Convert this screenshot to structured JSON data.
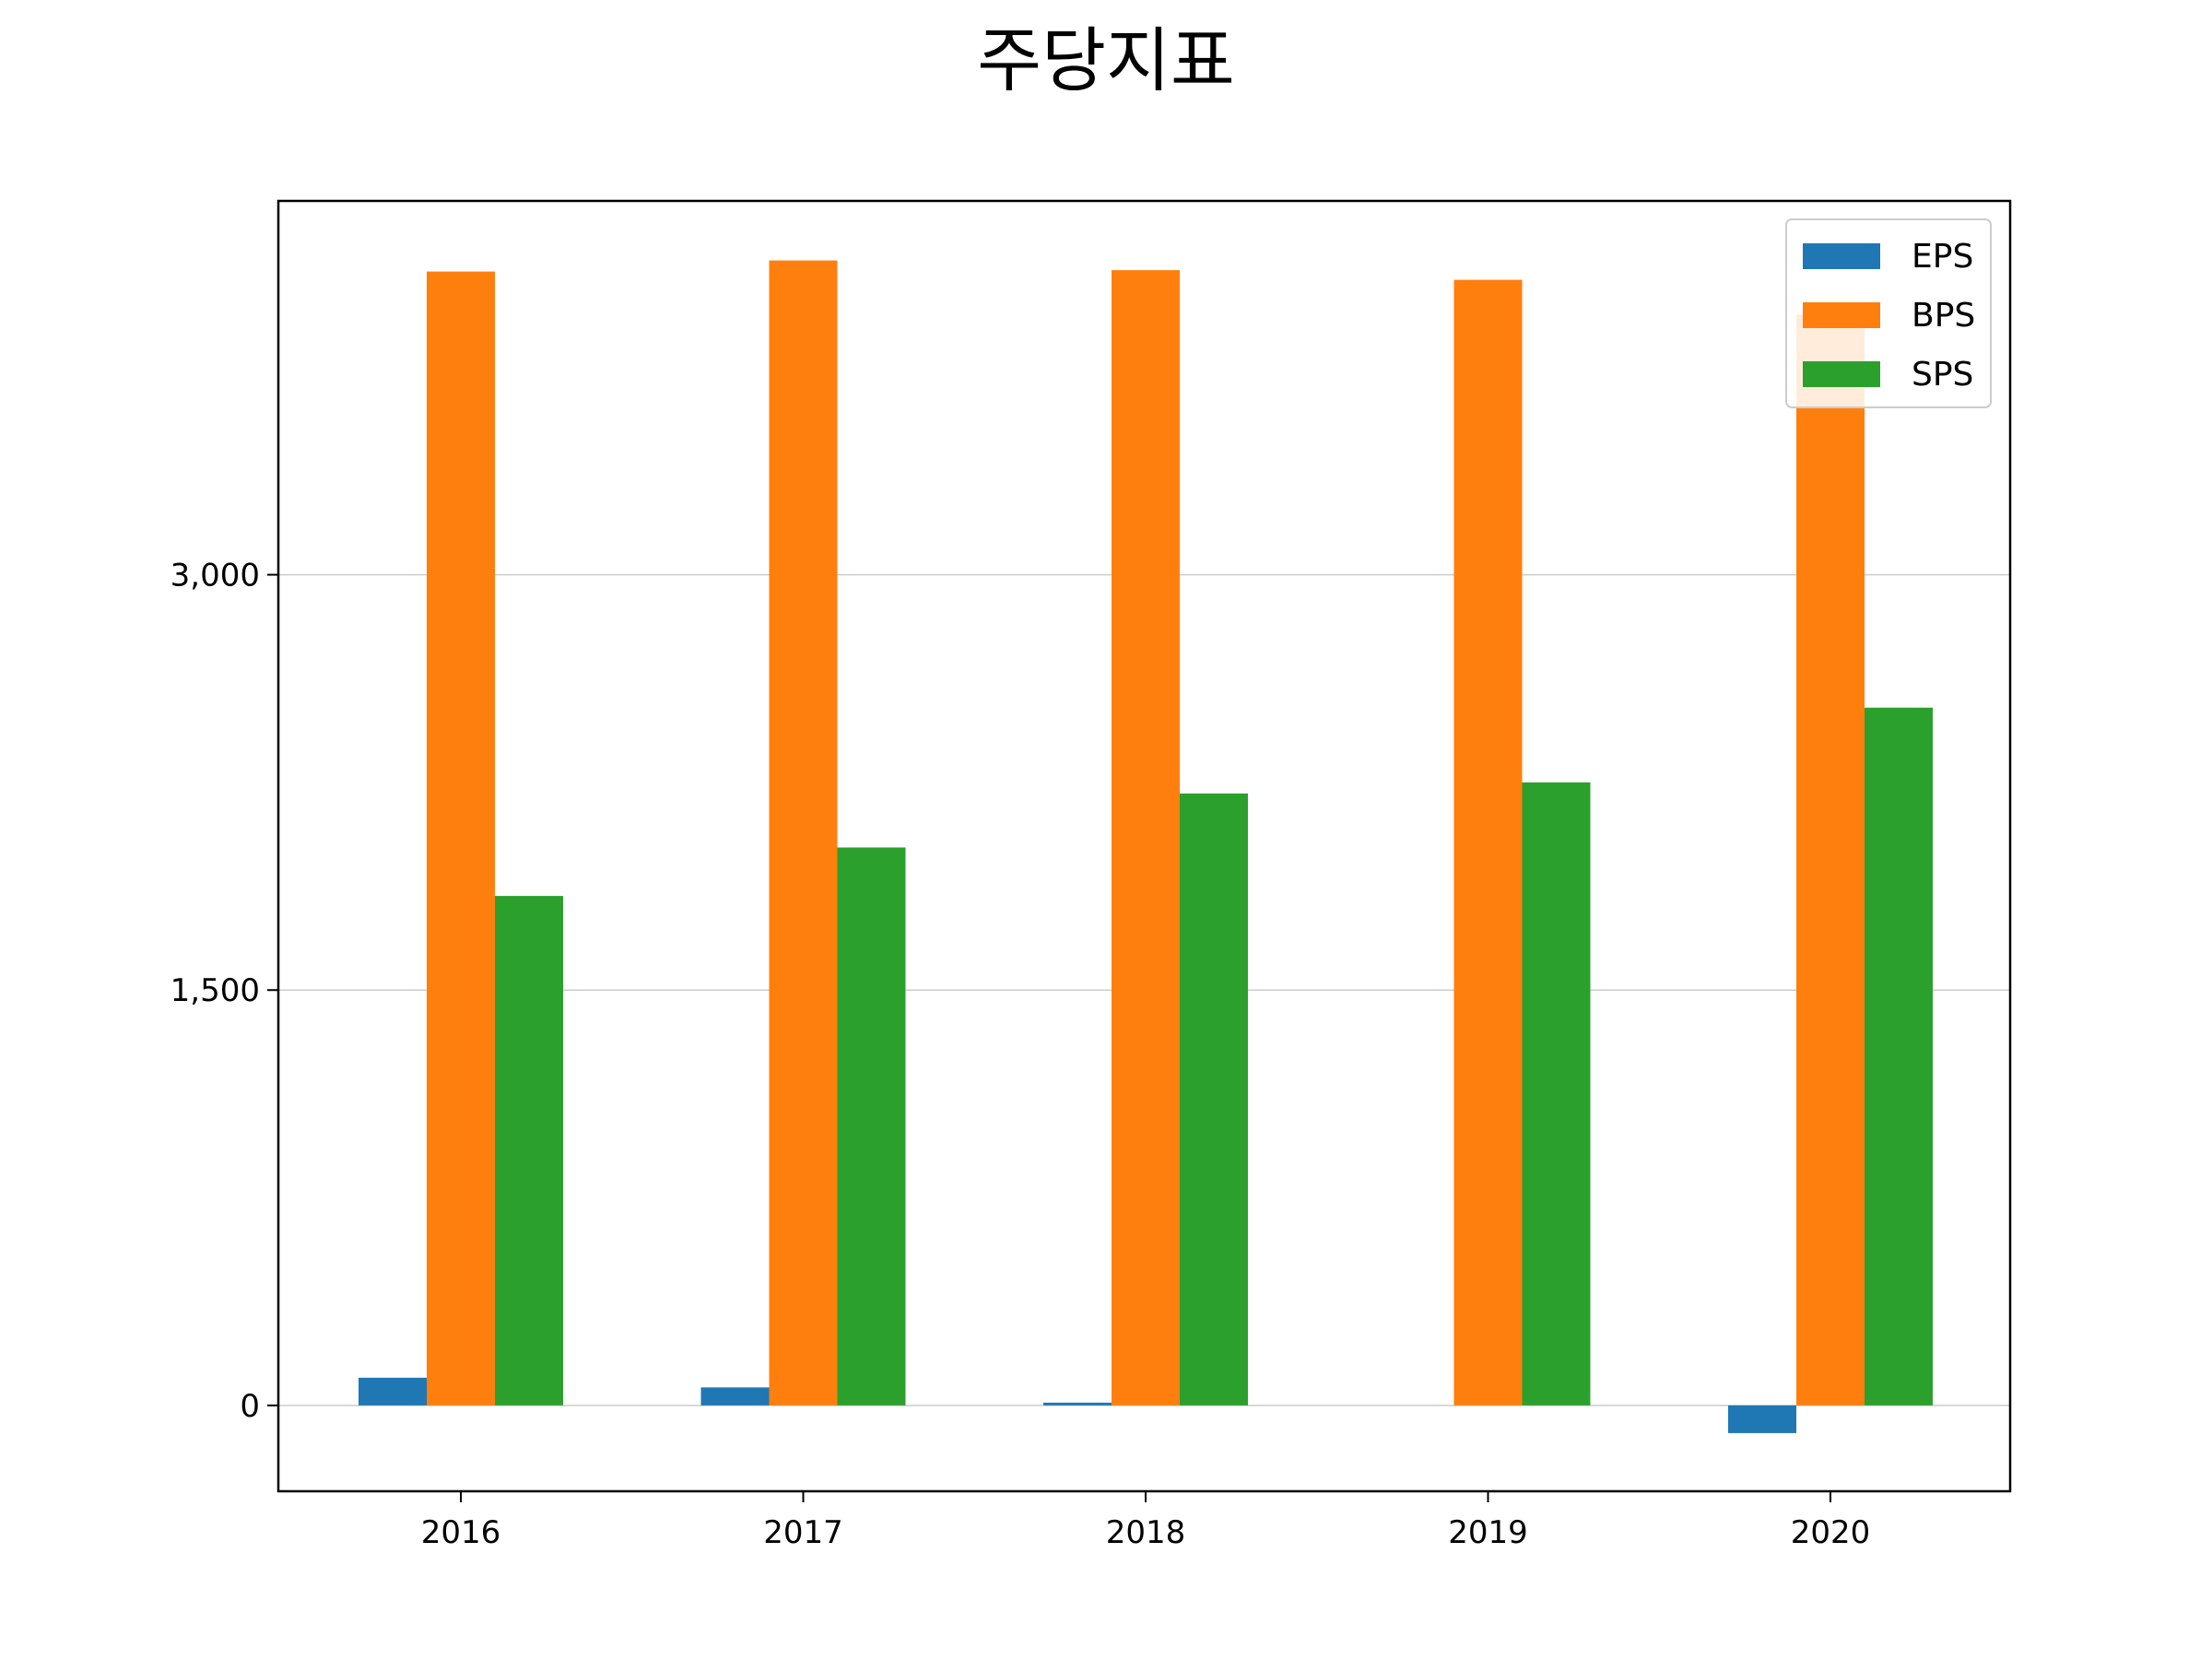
{
  "chart_data": {
    "type": "bar",
    "title": "주당지표",
    "xlabel": "",
    "ylabel": "",
    "categories": [
      "2016",
      "2017",
      "2018",
      "2019",
      "2020"
    ],
    "series": [
      {
        "name": "EPS",
        "color": "#1f77b4",
        "values": [
          100,
          65,
          10,
          0,
          -100
        ]
      },
      {
        "name": "BPS",
        "color": "#ff7f0e",
        "values": [
          4095,
          4135,
          4100,
          4065,
          3940
        ]
      },
      {
        "name": "SPS",
        "color": "#2ca02c",
        "values": [
          1840,
          2015,
          2210,
          2250,
          2520
        ]
      }
    ],
    "ylim": [
      -310,
      4350
    ],
    "yticks": [
      0,
      1500,
      3000
    ],
    "ytick_labels": [
      "0",
      "1,500",
      "3,000"
    ],
    "grid": "y",
    "legend": "top-right"
  }
}
